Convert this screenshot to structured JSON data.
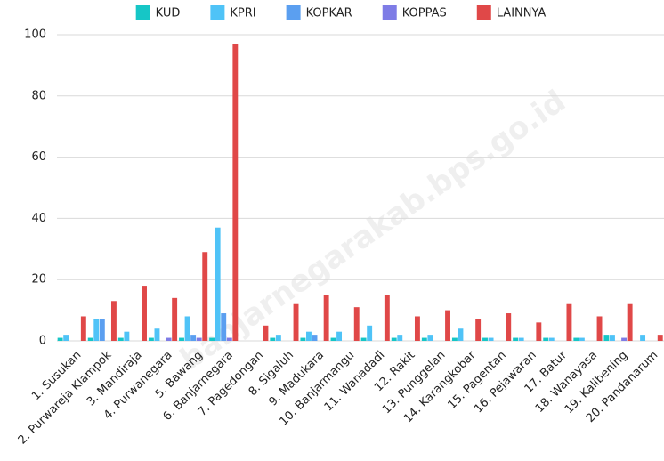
{
  "chart_data": {
    "type": "bar",
    "categories": [
      "1. Susukan",
      "2. Purwareja Klampok",
      "3. Mandiraja",
      "4. Purwanegara",
      "5. Bawang",
      "6. Banjarnegara",
      "7. Pagedongan",
      "8. Sigaluh",
      "9. Madukara",
      "10. Banjarmangu",
      "11. Wanadadi",
      "12. Rakit",
      "13. Punggelan",
      "14. Karangkobar",
      "15. Pagentan",
      "16. Pejawaran",
      "17. Batur",
      "18. Wanayasa",
      "19. Kalibening",
      "20. Pandanarum"
    ],
    "series": [
      {
        "name": "KUD",
        "color": "#16c6c6",
        "values": [
          1,
          1,
          1,
          1,
          1,
          1,
          0,
          1,
          1,
          1,
          1,
          1,
          1,
          1,
          1,
          1,
          1,
          1,
          2,
          0
        ]
      },
      {
        "name": "KPRI",
        "color": "#4fc3f7",
        "values": [
          2,
          7,
          3,
          4,
          8,
          37,
          0,
          2,
          3,
          3,
          5,
          2,
          2,
          4,
          1,
          1,
          1,
          1,
          2,
          2
        ]
      },
      {
        "name": "KOPKAR",
        "color": "#5b9ff0",
        "values": [
          0,
          7,
          0,
          0,
          2,
          9,
          0,
          0,
          2,
          0,
          0,
          0,
          0,
          0,
          0,
          0,
          0,
          0,
          0,
          0
        ]
      },
      {
        "name": "KOPPAS",
        "color": "#7e7ce6",
        "values": [
          0,
          0,
          0,
          1,
          1,
          1,
          0,
          0,
          0,
          0,
          0,
          0,
          0,
          0,
          0,
          0,
          0,
          0,
          1,
          0
        ]
      },
      {
        "name": "LAINNYA",
        "color": "#e04848",
        "values": [
          8,
          13,
          18,
          14,
          29,
          97,
          5,
          12,
          15,
          11,
          15,
          8,
          10,
          7,
          9,
          6,
          12,
          8,
          12,
          2
        ]
      }
    ],
    "ylim": [
      0,
      100
    ],
    "yticks": [
      0,
      20,
      40,
      60,
      80,
      100
    ],
    "grid": true,
    "legend": "top",
    "watermark": "banjarnegarakab.bps.go.id"
  }
}
